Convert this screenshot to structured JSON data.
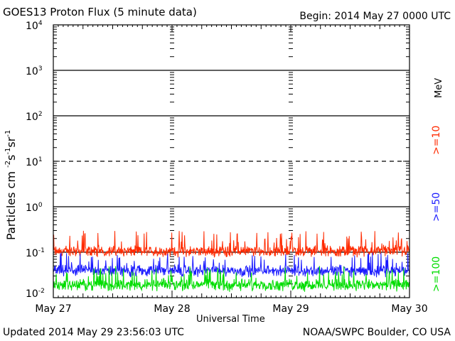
{
  "page": {
    "title": "GOES13 Proton Flux (5 minute data)",
    "begin": "Begin: 2014 May 27 0000 UTC",
    "updated": "Updated 2014 May 29 23:56:03 UTC",
    "credit": "NOAA/SWPC Boulder, CO USA"
  },
  "chart_data": {
    "type": "line",
    "title": "GOES13 Proton Flux (5 minute data)",
    "xlabel": "Universal Time",
    "ylabel": "Particles cm",
    "ylabel_units": [
      "-2",
      "s",
      "-1",
      "sr",
      "-1"
    ],
    "x_ticks": [
      "May 27",
      "May 28",
      "May 29",
      "May 30"
    ],
    "y_scale": "log",
    "ylim": [
      0.01,
      10000
    ],
    "y_ticks": [
      {
        "base": "10",
        "exp": "4"
      },
      {
        "base": "10",
        "exp": "3"
      },
      {
        "base": "10",
        "exp": "2"
      },
      {
        "base": "10",
        "exp": "1"
      },
      {
        "base": "10",
        "exp": "0"
      },
      {
        "base": "10",
        "exp": "-1"
      },
      {
        "base": "10",
        "exp": "-2"
      }
    ],
    "dashed_threshold": 10,
    "energy_unit": "MeV",
    "series": [
      {
        "name": ">=10",
        "color": "#ff2a00",
        "baseline": 0.1,
        "range": [
          0.07,
          0.3
        ]
      },
      {
        "name": ">=50",
        "color": "#1a1aff",
        "baseline": 0.04,
        "range": [
          0.025,
          0.1
        ]
      },
      {
        "name": ">=100",
        "color": "#00dd00",
        "baseline": 0.02,
        "range": [
          0.012,
          0.05
        ]
      }
    ]
  }
}
